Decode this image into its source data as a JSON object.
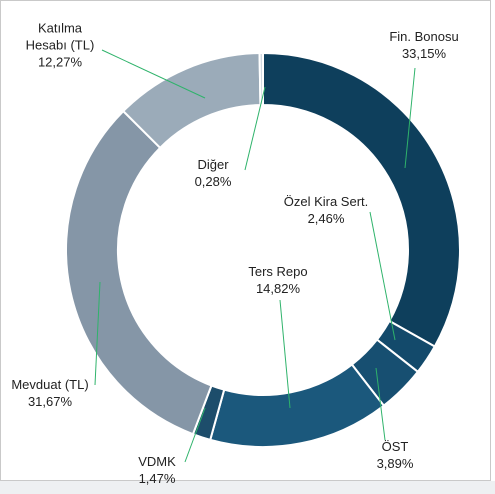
{
  "chart_data": {
    "type": "donut",
    "categories": [
      "Fin. Bonosu",
      "Özel Kira Sert.",
      "ÖST",
      "Ters Repo",
      "VDMK",
      "Mevduat (TL)",
      "Katılma Hesabı (TL)",
      "Diğer"
    ],
    "values": [
      33.15,
      2.46,
      3.89,
      14.82,
      1.47,
      31.67,
      12.27,
      0.28
    ],
    "value_labels": [
      "33,15%",
      "2,46%",
      "3,89%",
      "14,82%",
      "1,47%",
      "31,67%",
      "12,27%",
      "0,28%"
    ],
    "colors": [
      "#0e3f5c",
      "#134a6b",
      "#174f71",
      "#1b587c",
      "#1d4d6b",
      "#8596a7",
      "#9babb9",
      "#cfd8e0"
    ],
    "leader_color": "#2fb36b"
  }
}
